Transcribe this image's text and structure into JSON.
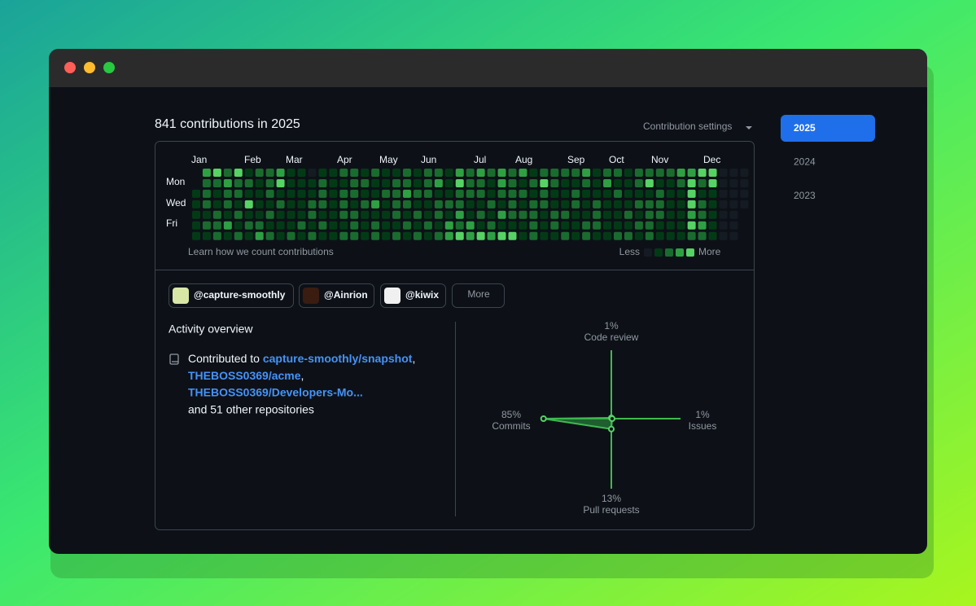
{
  "header": {
    "title": "841 contributions in 2025",
    "settings": "Contribution settings"
  },
  "contributions": {
    "months": [
      "Jan",
      "Feb",
      "Mar",
      "Apr",
      "May",
      "Jun",
      "Jul",
      "Aug",
      "Sep",
      "Oct",
      "Nov",
      "Dec"
    ],
    "day_labels": [
      "Mon",
      "Wed",
      "Fri"
    ],
    "levels": [
      0,
      1,
      2,
      3,
      4
    ],
    "level_colors": [
      "#151b23",
      "#033a16",
      "#196c2e",
      "#2ea043",
      "#56d364"
    ],
    "rows": [
      [
        null,
        3,
        4,
        2,
        4,
        1,
        2,
        2,
        3,
        1,
        1,
        0,
        1,
        1,
        2,
        2,
        1,
        2,
        1,
        1,
        2,
        1,
        2,
        2,
        1,
        3,
        2,
        3,
        2,
        3,
        2,
        3,
        1,
        2,
        2,
        2,
        2,
        3,
        1,
        2,
        2,
        1,
        2,
        2,
        2,
        2,
        3,
        3,
        4,
        4,
        0,
        0,
        0
      ],
      [
        null,
        2,
        2,
        3,
        2,
        2,
        1,
        2,
        4,
        1,
        1,
        1,
        2,
        1,
        1,
        2,
        2,
        1,
        1,
        2,
        2,
        1,
        2,
        3,
        1,
        4,
        2,
        2,
        1,
        3,
        2,
        1,
        2,
        4,
        2,
        1,
        1,
        2,
        1,
        3,
        1,
        1,
        2,
        4,
        1,
        1,
        2,
        4,
        2,
        4,
        0,
        0,
        0
      ],
      [
        1,
        2,
        1,
        2,
        2,
        1,
        1,
        2,
        1,
        1,
        1,
        1,
        2,
        1,
        2,
        2,
        1,
        1,
        2,
        2,
        3,
        2,
        2,
        1,
        1,
        2,
        2,
        2,
        1,
        2,
        2,
        2,
        1,
        2,
        1,
        1,
        2,
        1,
        1,
        1,
        2,
        1,
        1,
        1,
        2,
        1,
        1,
        4,
        1,
        1,
        0,
        0,
        0
      ],
      [
        1,
        2,
        1,
        2,
        1,
        4,
        1,
        1,
        2,
        1,
        1,
        2,
        2,
        1,
        2,
        1,
        2,
        3,
        1,
        2,
        2,
        1,
        1,
        2,
        2,
        2,
        1,
        1,
        2,
        1,
        2,
        1,
        2,
        2,
        1,
        1,
        2,
        1,
        2,
        1,
        1,
        1,
        2,
        2,
        2,
        1,
        1,
        4,
        2,
        1,
        0,
        0,
        0
      ],
      [
        1,
        1,
        2,
        1,
        2,
        1,
        1,
        2,
        1,
        1,
        1,
        2,
        1,
        1,
        2,
        2,
        1,
        1,
        1,
        2,
        1,
        2,
        1,
        2,
        1,
        3,
        1,
        2,
        1,
        3,
        2,
        2,
        2,
        1,
        2,
        2,
        1,
        1,
        2,
        1,
        1,
        2,
        1,
        2,
        2,
        1,
        1,
        3,
        2,
        1,
        0,
        0,
        null
      ],
      [
        1,
        2,
        2,
        3,
        1,
        2,
        2,
        1,
        1,
        1,
        2,
        1,
        2,
        1,
        1,
        2,
        1,
        2,
        1,
        1,
        2,
        1,
        2,
        1,
        3,
        2,
        3,
        1,
        2,
        1,
        1,
        1,
        2,
        1,
        2,
        1,
        1,
        2,
        2,
        1,
        1,
        1,
        2,
        2,
        1,
        1,
        1,
        4,
        3,
        1,
        0,
        0,
        null
      ],
      [
        1,
        1,
        2,
        1,
        2,
        1,
        3,
        2,
        1,
        2,
        1,
        2,
        1,
        1,
        2,
        2,
        1,
        2,
        1,
        2,
        1,
        2,
        1,
        2,
        3,
        4,
        3,
        4,
        3,
        4,
        4,
        1,
        2,
        1,
        1,
        2,
        1,
        2,
        1,
        1,
        2,
        2,
        1,
        2,
        1,
        1,
        1,
        2,
        2,
        1,
        0,
        0,
        null
      ]
    ],
    "learn": "Learn how we count contributions",
    "less": "Less",
    "more": "More"
  },
  "orgs": {
    "items": [
      "@capture-smoothly",
      "@Ainrion",
      "@kiwix"
    ],
    "more": "More"
  },
  "activity": {
    "title": "Activity overview",
    "prefix": "Contributed to",
    "separator": ",",
    "repos": [
      "capture-smoothly/snapshot",
      "THEBOSS0369/acme",
      "THEBOSS0369/Developers-Mo..."
    ],
    "others": "and 51 other repositories",
    "radar": [
      {
        "label": "Code review",
        "value": 1,
        "value_label": "1%"
      },
      {
        "label": "Issues",
        "value": 1,
        "value_label": "1%"
      },
      {
        "label": "Pull requests",
        "value": 13,
        "value_label": "13%"
      },
      {
        "label": "Commits",
        "value": 85,
        "value_label": "85%"
      }
    ]
  },
  "years": {
    "items": [
      "2025",
      "2024",
      "2023"
    ],
    "selected": 0
  }
}
